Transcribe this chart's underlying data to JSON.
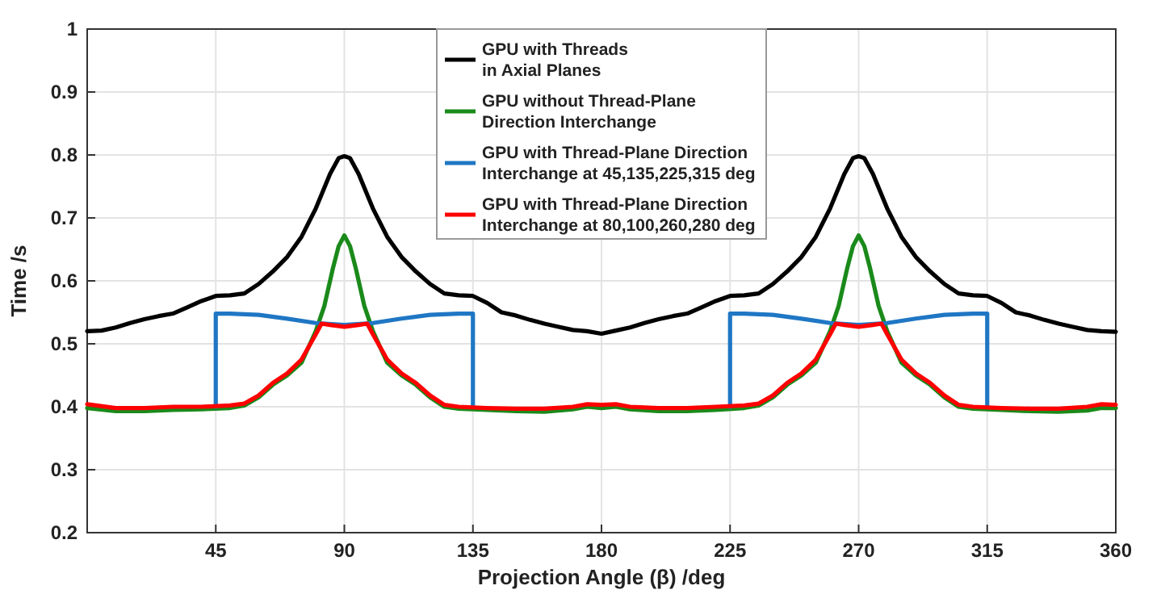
{
  "chart_data": {
    "type": "line",
    "xlabel": "Projection Angle (β) /deg",
    "ylabel": "Time /s",
    "xlim": [
      0,
      360
    ],
    "xticks": [
      45,
      90,
      135,
      180,
      225,
      270,
      315,
      360
    ],
    "ylim": [
      0.2,
      1
    ],
    "yticks": [
      0.2,
      0.3,
      0.4,
      0.5,
      0.6,
      0.7,
      0.8,
      0.9,
      1
    ],
    "grid": true,
    "legend": "top",
    "line_style": "solid",
    "marker": "none",
    "series": [
      {
        "name": "GPU with Threads\nin Axial Planes",
        "color": "#000000",
        "x": [
          0,
          5,
          10,
          15,
          20,
          25,
          30,
          35,
          40,
          45,
          50,
          55,
          60,
          65,
          70,
          75,
          80,
          85,
          88,
          90,
          92,
          95,
          100,
          105,
          110,
          115,
          120,
          125,
          130,
          135,
          140,
          145,
          150,
          155,
          160,
          165,
          170,
          175,
          180,
          185,
          190,
          195,
          200,
          205,
          210,
          215,
          220,
          225,
          230,
          235,
          240,
          245,
          250,
          255,
          260,
          265,
          268,
          270,
          272,
          275,
          280,
          285,
          290,
          295,
          300,
          305,
          310,
          315,
          320,
          325,
          330,
          335,
          340,
          345,
          350,
          355,
          360
        ],
        "values": [
          0.52,
          0.521,
          0.526,
          0.533,
          0.539,
          0.544,
          0.548,
          0.558,
          0.568,
          0.576,
          0.577,
          0.58,
          0.595,
          0.615,
          0.638,
          0.67,
          0.715,
          0.77,
          0.795,
          0.798,
          0.795,
          0.77,
          0.715,
          0.67,
          0.638,
          0.615,
          0.595,
          0.58,
          0.577,
          0.576,
          0.565,
          0.55,
          0.545,
          0.538,
          0.532,
          0.527,
          0.522,
          0.52,
          0.516,
          0.521,
          0.526,
          0.533,
          0.539,
          0.544,
          0.548,
          0.558,
          0.568,
          0.576,
          0.577,
          0.58,
          0.595,
          0.615,
          0.638,
          0.67,
          0.715,
          0.77,
          0.795,
          0.798,
          0.795,
          0.77,
          0.715,
          0.67,
          0.638,
          0.615,
          0.595,
          0.58,
          0.577,
          0.576,
          0.565,
          0.55,
          0.545,
          0.538,
          0.532,
          0.527,
          0.522,
          0.52,
          0.519
        ]
      },
      {
        "name": "GPU without Thread-Plane\nDirection Interchange",
        "color": "#1a8a1a",
        "x": [
          0,
          10,
          20,
          30,
          40,
          50,
          55,
          60,
          65,
          70,
          75,
          80,
          83,
          86,
          88,
          90,
          92,
          94,
          97,
          100,
          105,
          110,
          115,
          120,
          125,
          130,
          140,
          150,
          160,
          170,
          175,
          180,
          185,
          190,
          200,
          210,
          220,
          230,
          235,
          240,
          245,
          250,
          255,
          260,
          263,
          266,
          268,
          270,
          272,
          274,
          277,
          280,
          285,
          290,
          295,
          300,
          305,
          310,
          320,
          330,
          340,
          350,
          355,
          360
        ],
        "values": [
          0.398,
          0.393,
          0.393,
          0.395,
          0.396,
          0.398,
          0.402,
          0.415,
          0.435,
          0.45,
          0.47,
          0.52,
          0.56,
          0.62,
          0.655,
          0.672,
          0.655,
          0.62,
          0.56,
          0.52,
          0.47,
          0.45,
          0.435,
          0.415,
          0.4,
          0.397,
          0.395,
          0.393,
          0.392,
          0.396,
          0.4,
          0.398,
          0.4,
          0.396,
          0.393,
          0.393,
          0.395,
          0.398,
          0.402,
          0.415,
          0.435,
          0.45,
          0.47,
          0.52,
          0.56,
          0.62,
          0.655,
          0.672,
          0.655,
          0.62,
          0.56,
          0.52,
          0.47,
          0.45,
          0.435,
          0.415,
          0.4,
          0.397,
          0.395,
          0.393,
          0.392,
          0.394,
          0.398,
          0.398
        ]
      },
      {
        "name": "GPU with Thread-Plane Direction\nInterchange at 45,135,225,315 deg",
        "color": "#1f77c4",
        "x": [
          45,
          45,
          50,
          60,
          70,
          80,
          90,
          100,
          110,
          120,
          130,
          135,
          135,
          180,
          225,
          225,
          230,
          240,
          250,
          260,
          270,
          280,
          290,
          300,
          310,
          315,
          315
        ],
        "values": [
          0.4,
          0.548,
          0.548,
          0.546,
          0.54,
          0.533,
          0.53,
          0.533,
          0.54,
          0.546,
          0.548,
          0.548,
          0.4,
          null,
          0.4,
          0.548,
          0.548,
          0.546,
          0.54,
          0.533,
          0.53,
          0.533,
          0.54,
          0.546,
          0.548,
          0.548,
          0.4
        ]
      },
      {
        "name": "GPU with Thread-Plane Direction\nInterchange at 80,100,260,280 deg",
        "color": "#ff0000",
        "x": [
          0,
          10,
          20,
          30,
          40,
          50,
          55,
          60,
          65,
          70,
          75,
          80,
          82,
          85,
          90,
          95,
          98,
          100,
          105,
          110,
          115,
          120,
          125,
          130,
          140,
          150,
          160,
          170,
          175,
          180,
          185,
          190,
          200,
          210,
          220,
          230,
          235,
          240,
          245,
          250,
          255,
          260,
          262,
          265,
          270,
          275,
          278,
          280,
          285,
          290,
          295,
          300,
          305,
          310,
          320,
          330,
          340,
          350,
          355,
          360
        ],
        "values": [
          0.404,
          0.398,
          0.398,
          0.4,
          0.4,
          0.402,
          0.405,
          0.418,
          0.438,
          0.453,
          0.475,
          0.515,
          0.532,
          0.53,
          0.527,
          0.53,
          0.532,
          0.515,
          0.475,
          0.453,
          0.438,
          0.418,
          0.403,
          0.4,
          0.398,
          0.397,
          0.397,
          0.4,
          0.404,
          0.403,
          0.404,
          0.4,
          0.398,
          0.398,
          0.4,
          0.402,
          0.405,
          0.418,
          0.438,
          0.453,
          0.475,
          0.515,
          0.532,
          0.53,
          0.527,
          0.53,
          0.532,
          0.515,
          0.475,
          0.453,
          0.438,
          0.418,
          0.403,
          0.4,
          0.398,
          0.397,
          0.397,
          0.4,
          0.404,
          0.403
        ]
      }
    ]
  }
}
